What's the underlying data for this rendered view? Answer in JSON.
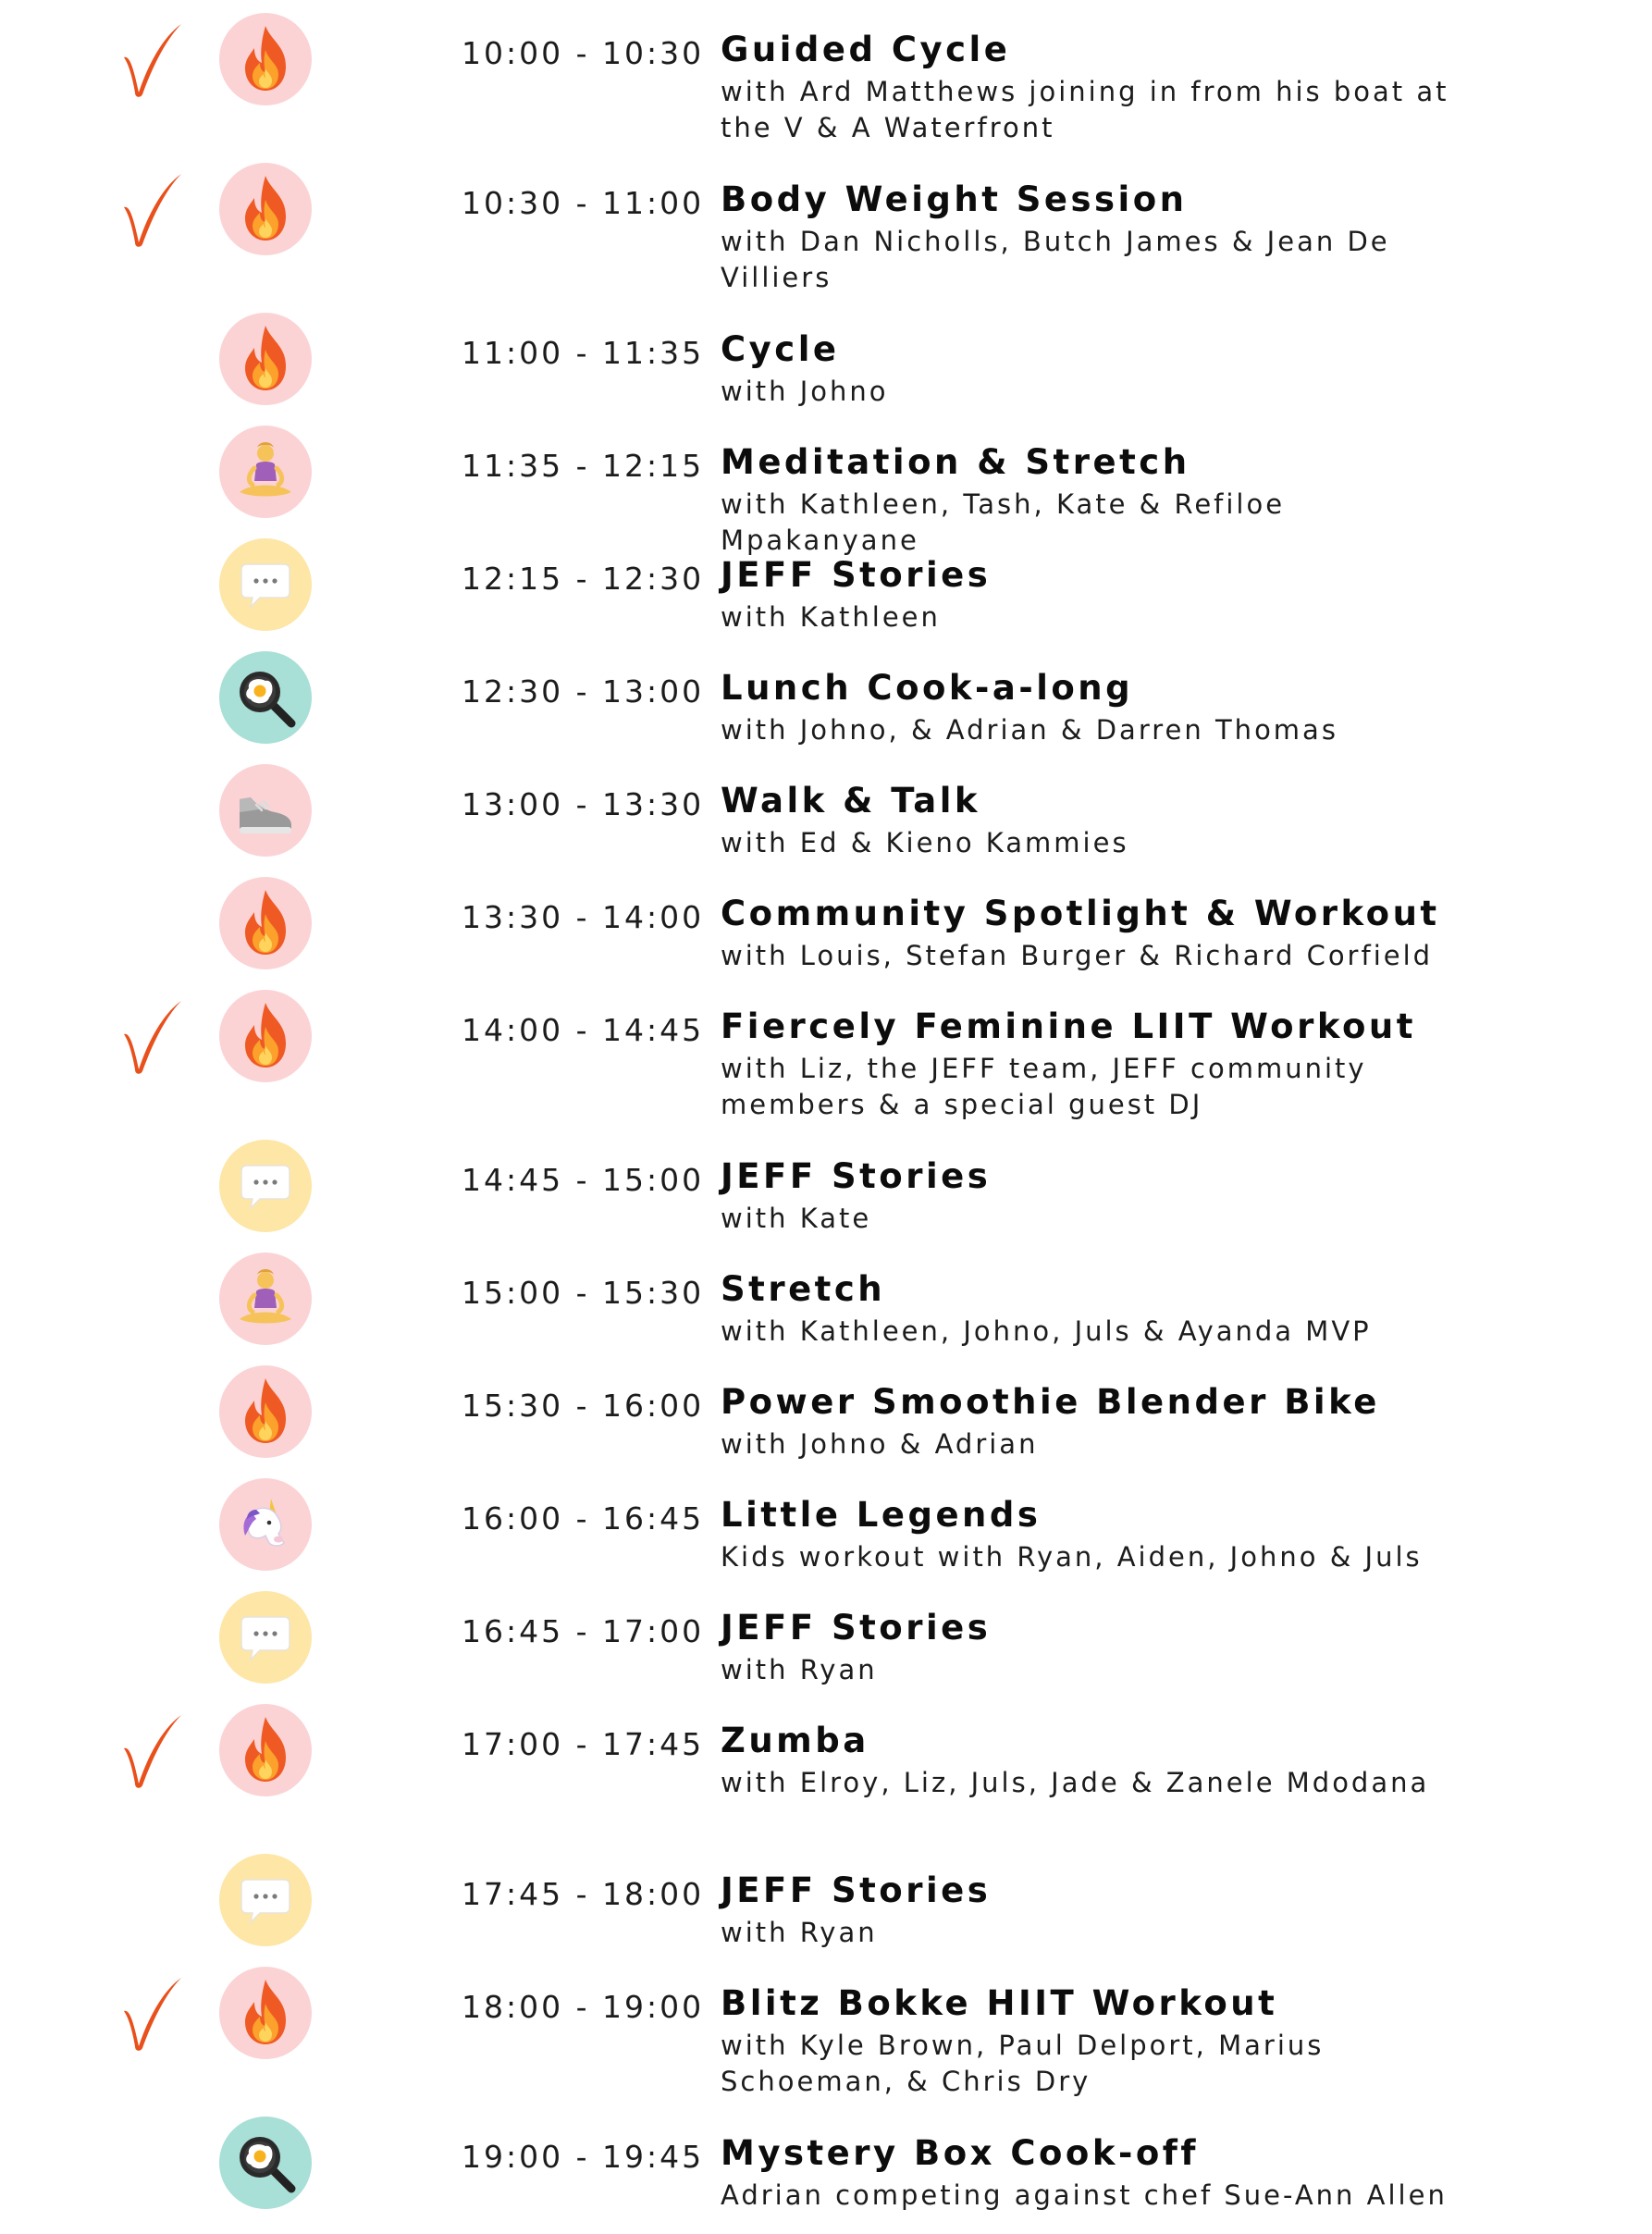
{
  "colors": {
    "check": "#e8501c",
    "fire_bg": "#fbd3d5",
    "meditation_bg": "#fbd3d5",
    "shoe_bg": "#fbd3d5",
    "unicorn_bg": "#fbd3d5",
    "chat_bg": "#fde6a6",
    "cook_bg": "#a8dfd6"
  },
  "icons": {
    "fire": "fire-icon",
    "meditation": "meditation-icon",
    "chat": "speech-bubble-icon",
    "cook": "frying-pan-egg-icon",
    "shoe": "sneaker-icon",
    "unicorn": "unicorn-icon",
    "check": "checkmark-icon"
  },
  "schedule": [
    {
      "time": "10:00 - 10:30",
      "title": "Guided Cycle",
      "desc": "with Ard Matthews joining in from his boat at the V & A Waterfront",
      "icon": "fire",
      "checked": true
    },
    {
      "time": "10:30 - 11:00",
      "title": "Body Weight Session",
      "desc": "with Dan Nicholls, Butch James & Jean De Villiers",
      "icon": "fire",
      "checked": true
    },
    {
      "time": "11:00 - 11:35",
      "title": "Cycle",
      "desc": "with Johno",
      "icon": "fire",
      "checked": false
    },
    {
      "time": "11:35 - 12:15",
      "title": "Meditation & Stretch",
      "desc": "with Kathleen, Tash, Kate & Refiloe Mpakanyane",
      "icon": "meditation",
      "checked": false
    },
    {
      "time": "12:15 - 12:30",
      "title": "JEFF Stories",
      "desc": "with Kathleen",
      "icon": "chat",
      "checked": false
    },
    {
      "time": "12:30 - 13:00",
      "title": "Lunch Cook-a-long",
      "desc": "with Johno, & Adrian & Darren Thomas",
      "icon": "cook",
      "checked": false
    },
    {
      "time": "13:00 - 13:30",
      "title": "Walk & Talk",
      "desc": "with Ed & Kieno Kammies",
      "icon": "shoe",
      "checked": false
    },
    {
      "time": "13:30 - 14:00",
      "title": "Community Spotlight & Workout",
      "desc": "with Louis, Stefan Burger & Richard Corfield",
      "icon": "fire",
      "checked": false
    },
    {
      "time": "14:00 - 14:45",
      "title": "Fiercely Feminine LIIT Workout",
      "desc": "with Liz, the JEFF team, JEFF community members & a special guest DJ",
      "icon": "fire",
      "checked": true
    },
    {
      "time": "14:45 - 15:00",
      "title": "JEFF Stories",
      "desc": "with Kate",
      "icon": "chat",
      "checked": false
    },
    {
      "time": "15:00 - 15:30",
      "title": "Stretch",
      "desc": "with Kathleen, Johno, Juls & Ayanda MVP",
      "icon": "meditation",
      "checked": false
    },
    {
      "time": "15:30 - 16:00",
      "title": "Power Smoothie Blender Bike",
      "desc": "with Johno & Adrian",
      "icon": "fire",
      "checked": false
    },
    {
      "time": "16:00 - 16:45",
      "title": "Little Legends",
      "desc": "Kids workout with Ryan, Aiden, Johno & Juls",
      "icon": "unicorn",
      "checked": false
    },
    {
      "time": "16:45 - 17:00",
      "title": "JEFF Stories",
      "desc": "with Ryan",
      "icon": "chat",
      "checked": false
    },
    {
      "time": "17:00 - 17:45",
      "title": "Zumba",
      "desc": "with Elroy, Liz, Juls, Jade & Zanele Mdodana",
      "icon": "fire",
      "checked": true
    },
    {
      "time": "17:45 - 18:00",
      "title": "JEFF Stories",
      "desc": "with Ryan",
      "icon": "chat",
      "checked": false
    },
    {
      "time": "18:00 - 19:00",
      "title": "Blitz Bokke HIIT Workout",
      "desc": "with Kyle Brown, Paul Delport, Marius Schoeman, & Chris Dry",
      "icon": "fire",
      "checked": true
    },
    {
      "time": "19:00 - 19:45",
      "title": "Mystery Box Cook-off",
      "desc": "Adrian competing against chef Sue-Ann Allen",
      "icon": "cook",
      "checked": false
    }
  ]
}
